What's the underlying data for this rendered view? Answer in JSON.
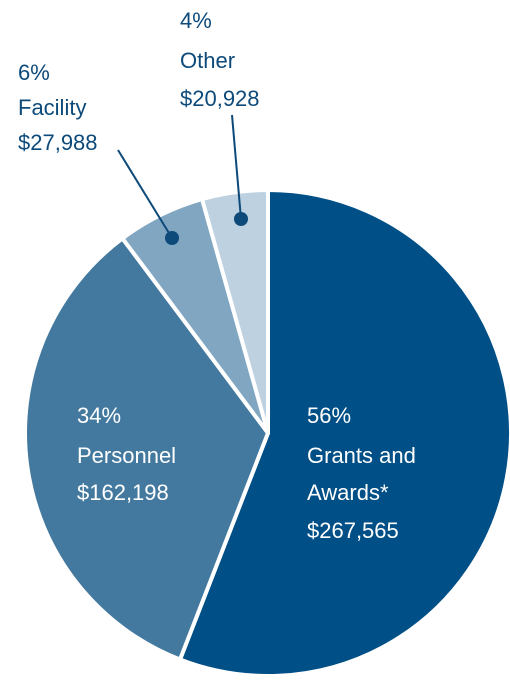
{
  "chart_data": {
    "type": "pie",
    "categories": [
      "Grants and Awards*",
      "Personnel",
      "Facility",
      "Other"
    ],
    "values": [
      267565,
      162198,
      27988,
      20928
    ],
    "value_labels": [
      "$267,565",
      "$162,198",
      "$27,988",
      "$20,928"
    ],
    "percent_labels": [
      "56%",
      "34%",
      "6%",
      "4%"
    ],
    "colors": [
      "#004f86",
      "#44799f",
      "#81a6c2",
      "#bdd1e0"
    ]
  }
}
